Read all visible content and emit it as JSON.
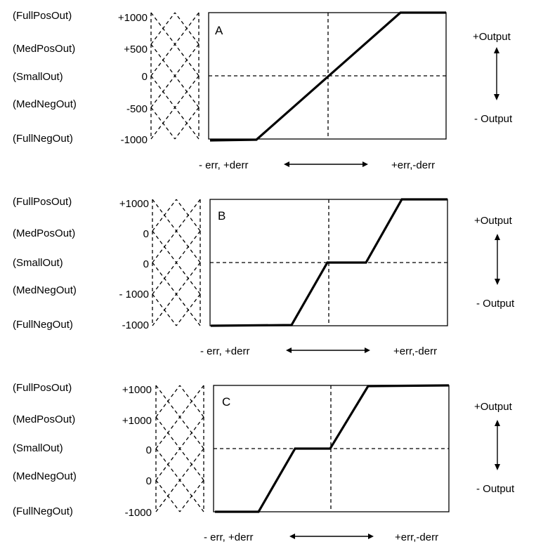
{
  "labels": [
    "(FullPosOut)",
    "(MedPosOut)",
    "(SmallOut)",
    "(MedNegOut)",
    "(FullNegOut)"
  ],
  "axis": {
    "left": "- err, +derr",
    "right": "+err,-derr"
  },
  "output": {
    "top": "+Output",
    "bottom": "- Output"
  },
  "panels": [
    {
      "letter": "A",
      "values": [
        "+1000",
        "+500",
        "0",
        "-500",
        "-1000"
      ]
    },
    {
      "letter": "B",
      "values": [
        "+1000",
        "0",
        "0",
        "- 1000",
        "-1000"
      ]
    },
    {
      "letter": "C",
      "values": [
        "+1000",
        "+1000",
        "0",
        "0",
        "-1000"
      ]
    }
  ]
}
